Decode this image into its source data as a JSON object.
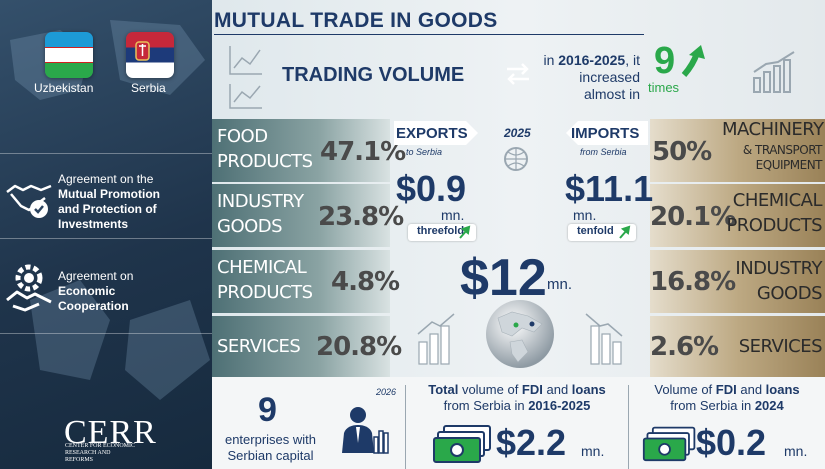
{
  "title": "MUTUAL TRADE IN GOODS",
  "countries": [
    {
      "name": "Uzbekistan"
    },
    {
      "name": "Serbia"
    }
  ],
  "agreements": [
    {
      "line1": "Agreement on the",
      "bold1": "Mutual Promotion",
      "bold2": "and Protection of",
      "bold3": "Investments"
    },
    {
      "line1": "Agreement on",
      "bold1": "Economic",
      "bold2": "Cooperation"
    }
  ],
  "logo": {
    "name": "CERR",
    "subtitle": "CENTER FOR ECONOMIC RESEARCH AND REFORMS"
  },
  "trading_volume": {
    "label": "TRADING VOLUME",
    "period_pre": "in",
    "period": "2016-2025",
    "period_post": ", it",
    "line2": "increased",
    "line3": "almost in",
    "multiplier": "9",
    "multiplier_unit": "times"
  },
  "exports": {
    "label": "EXPORTS",
    "sub": "to Serbia",
    "value": "$0.9",
    "unit": "mn.",
    "badge": "threefold",
    "categories": [
      {
        "line1": "FOOD",
        "line2": "PRODUCTS",
        "pct": "47.1%"
      },
      {
        "line1": "INDUSTRY",
        "line2": "GOODS",
        "pct": "23.8%"
      },
      {
        "line1": "CHEMICAL",
        "line2": "PRODUCTS",
        "pct": "4.8%"
      },
      {
        "line1": "SERVICES",
        "line2": "",
        "pct": "20.8%"
      }
    ]
  },
  "imports": {
    "label": "IMPORTS",
    "sub": "from Serbia",
    "value": "$11.1",
    "unit": "mn.",
    "badge": "tenfold",
    "categories": [
      {
        "line1": "MACHINERY",
        "line2": "& TRANSPORT",
        "line3": "EQUIPMENT",
        "pct": "50%"
      },
      {
        "line1": "CHEMICAL",
        "line2": "PRODUCTS",
        "pct": "20.1%"
      },
      {
        "line1": "INDUSTRY",
        "line2": "GOODS",
        "pct": "16.8%"
      },
      {
        "line1": "SERVICES",
        "line2": "",
        "pct": "2.6%"
      }
    ]
  },
  "year": "2025",
  "total": {
    "value": "$12",
    "unit": "mn."
  },
  "enterprises": {
    "count": "9",
    "text1": "enterprises with",
    "text2": "Serbian capital",
    "year": "2026"
  },
  "fdi_total": {
    "pre": "Total",
    "mid1": " volume of ",
    "b1": "FDI",
    "mid2": " and ",
    "b2": "loans",
    "line2": "from Serbia in",
    "period": "2016-2025",
    "value": "$2.2",
    "unit": "mn."
  },
  "fdi_2024": {
    "pre": "Volume of ",
    "b1": "FDI",
    "mid": " and ",
    "b2": "loans",
    "line2": "from Serbia in",
    "period": "2024",
    "value": "$0.2",
    "unit": "mn."
  },
  "colors": {
    "navy": "#1e3a68",
    "green": "#2aa84a",
    "teal": "#5d7e80",
    "tan": "#b09b74"
  }
}
